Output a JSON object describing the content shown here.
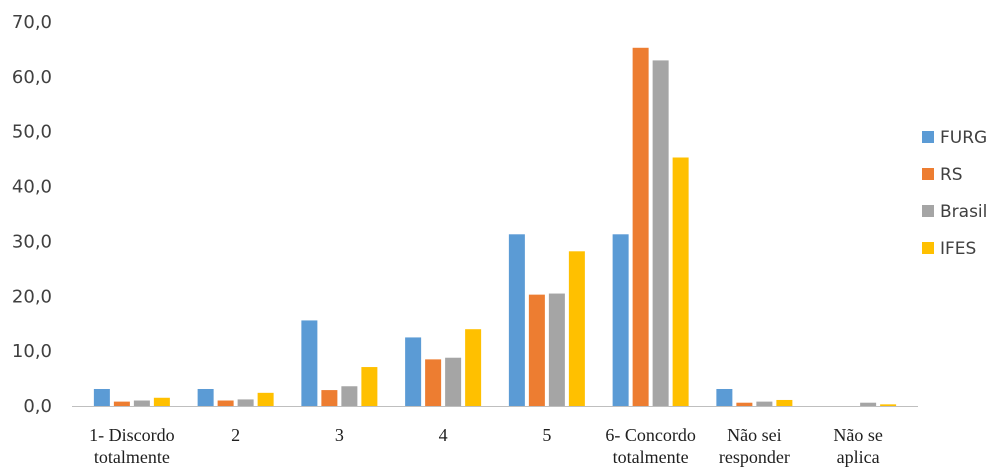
{
  "chart_data": {
    "type": "bar",
    "categories": [
      [
        "1- Discordo",
        "totalmente"
      ],
      [
        "2"
      ],
      [
        "3"
      ],
      [
        "4"
      ],
      [
        "5"
      ],
      [
        "6- Concordo",
        "totalmente"
      ],
      [
        "Não sei",
        "responder"
      ],
      [
        "Não se",
        "aplica"
      ]
    ],
    "series": [
      {
        "name": "FURG",
        "color": "#5B9BD5",
        "values": [
          3.1,
          3.1,
          15.6,
          12.5,
          31.3,
          31.3,
          3.1,
          0.0
        ]
      },
      {
        "name": "RS",
        "color": "#ED7D31",
        "values": [
          0.8,
          1.0,
          2.9,
          8.5,
          20.3,
          65.3,
          0.6,
          0.0
        ]
      },
      {
        "name": "Brasil",
        "color": "#A5A5A5",
        "values": [
          1.0,
          1.2,
          3.6,
          8.8,
          20.5,
          63.0,
          0.8,
          0.6
        ]
      },
      {
        "name": "IFES",
        "color": "#FFC000",
        "values": [
          1.5,
          2.4,
          7.1,
          14.0,
          28.2,
          45.3,
          1.1,
          0.3
        ]
      }
    ],
    "yticks": [
      "0,0",
      "10,0",
      "20,0",
      "30,0",
      "40,0",
      "50,0",
      "60,0",
      "70,0"
    ],
    "ylim": [
      0,
      70
    ],
    "title": "",
    "xlabel": "",
    "ylabel": "",
    "legend_position": "right",
    "grid": false
  }
}
